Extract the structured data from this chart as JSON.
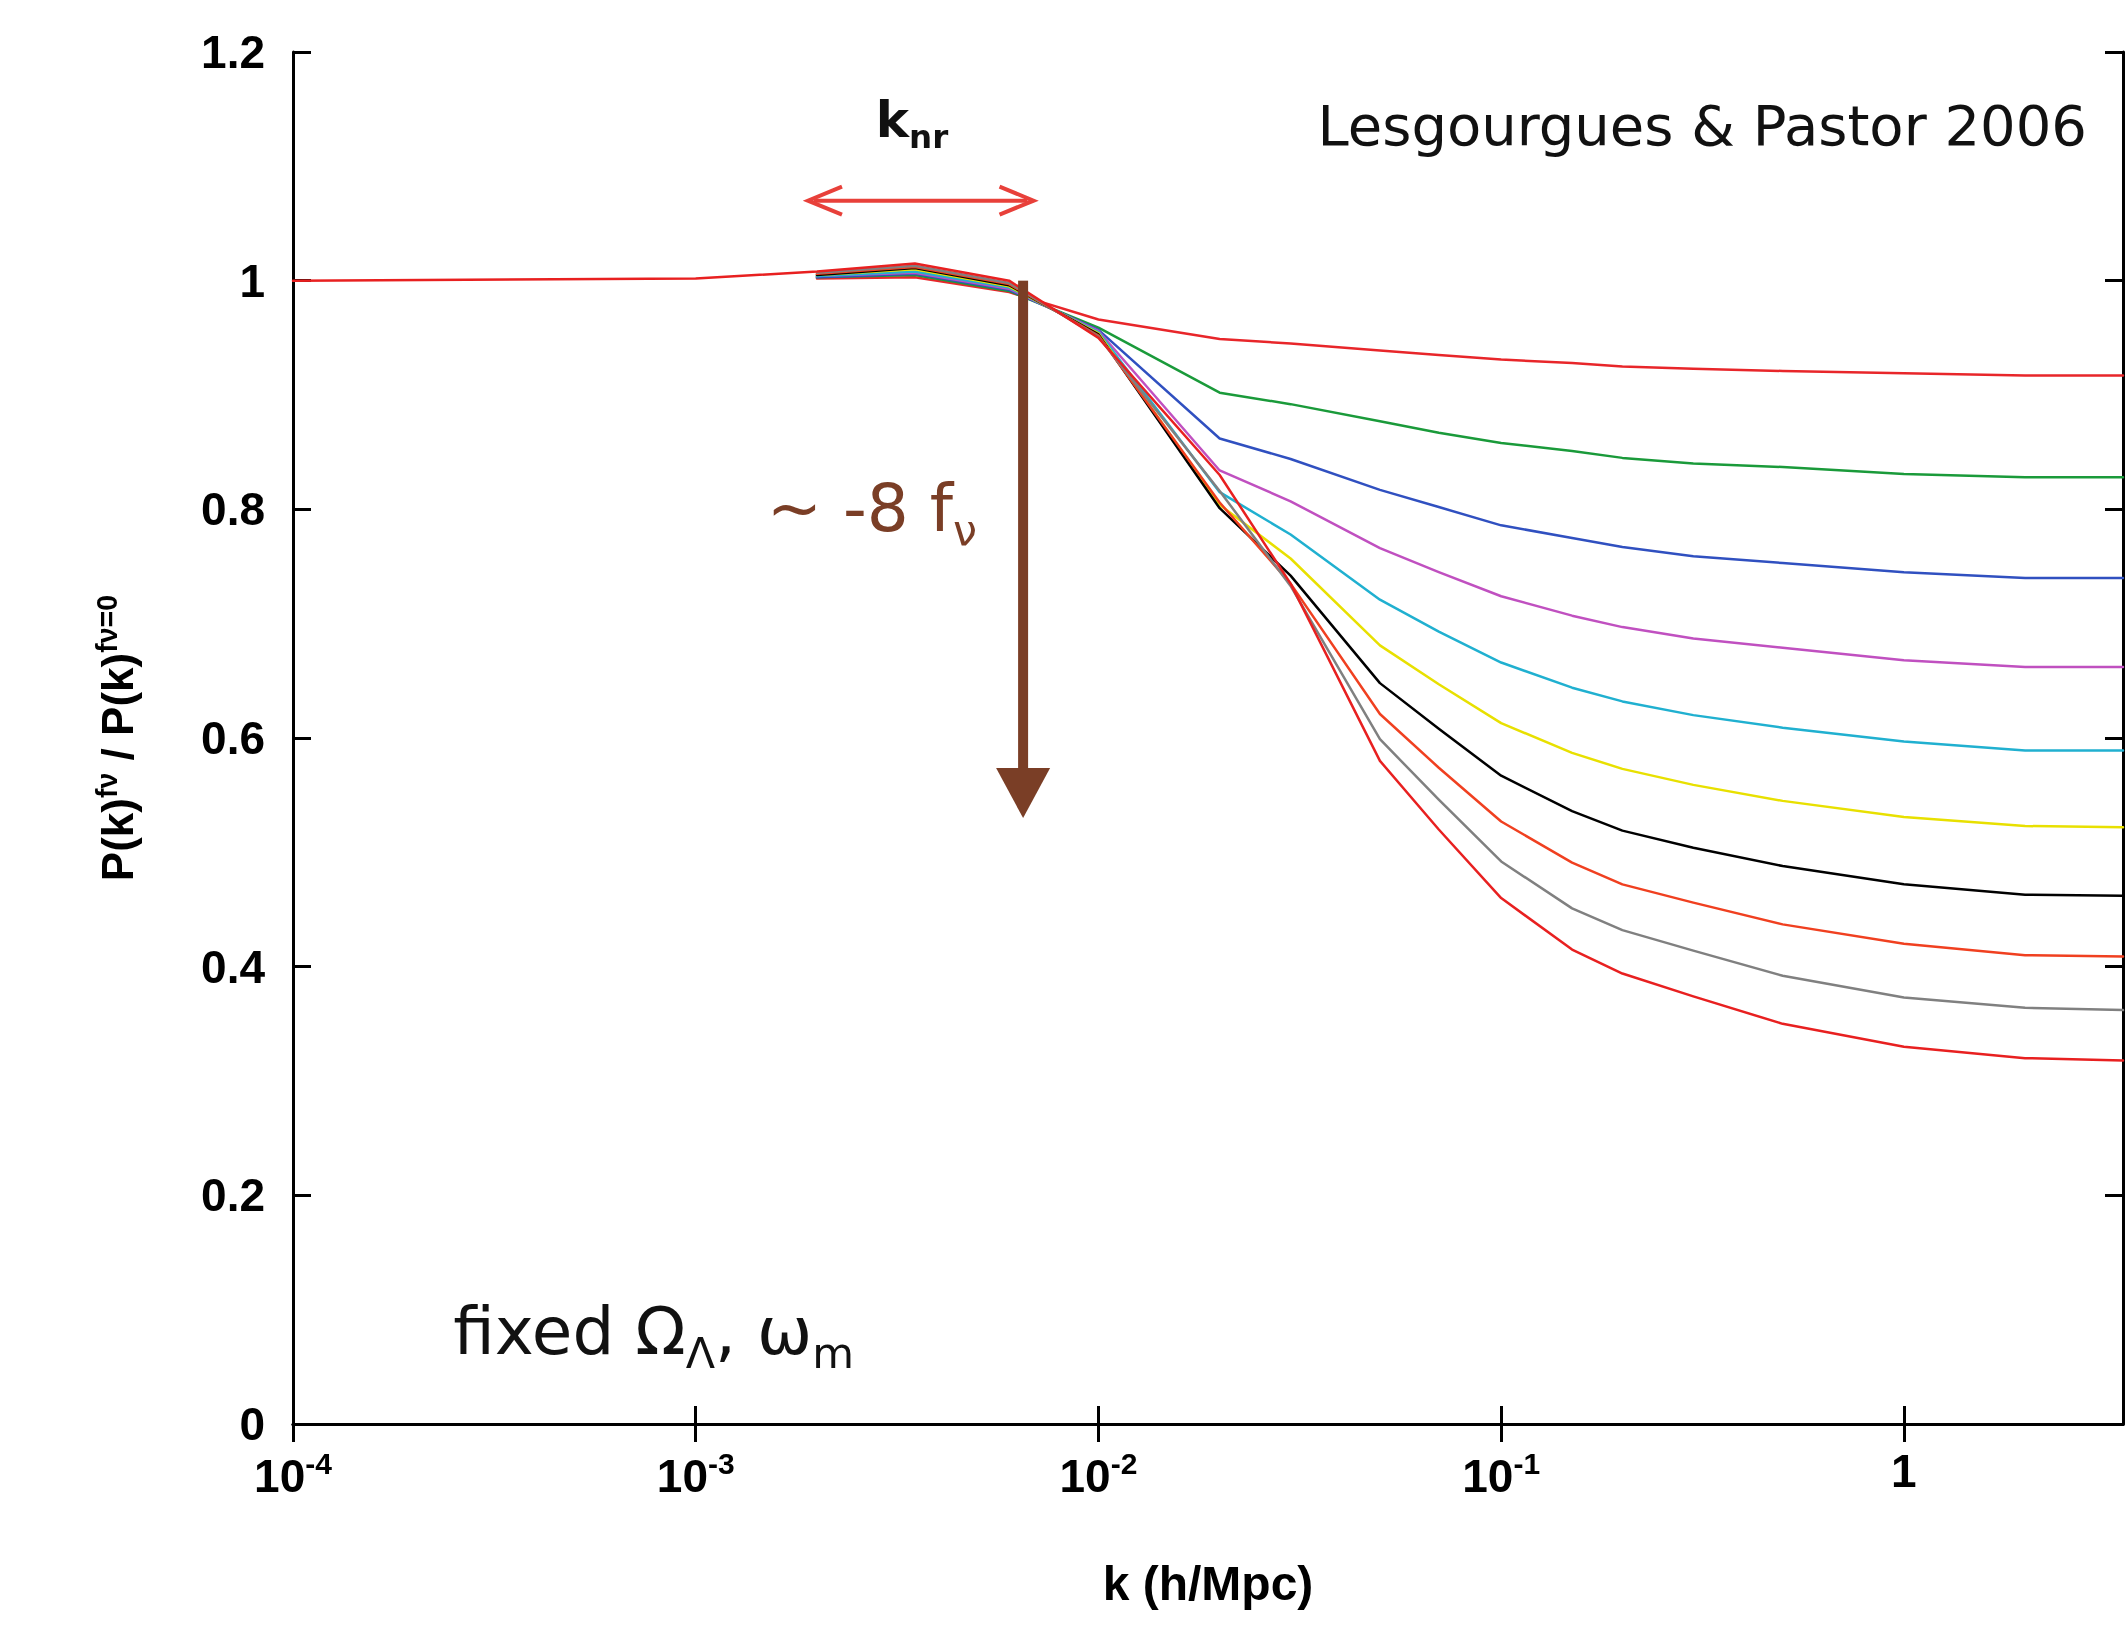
{
  "chart_data": {
    "type": "line",
    "xlabel": "k (h/Mpc)",
    "ylabel": "P(k)$^{fν}$ / P(k)$^{fν=0}$",
    "x": [
      0.0001,
      0.001,
      0.002,
      0.0035,
      0.006,
      0.01,
      0.02,
      0.03,
      0.05,
      0.07,
      0.1,
      0.15,
      0.2,
      0.3,
      0.5,
      1,
      2,
      3.5
    ],
    "series": [
      {
        "color": "#e8262a",
        "values": [
          null,
          null,
          1.002,
          1.003,
          0.99,
          0.966,
          0.949,
          0.945,
          0.939,
          0.935,
          0.931,
          0.928,
          0.925,
          0.923,
          0.921,
          0.919,
          0.917,
          0.917
        ]
      },
      {
        "color": "#1a9a3a",
        "values": [
          null,
          null,
          1.003,
          1.005,
          0.991,
          0.959,
          0.902,
          0.892,
          0.877,
          0.867,
          0.858,
          0.851,
          0.845,
          0.84,
          0.837,
          0.831,
          0.828,
          0.828
        ]
      },
      {
        "color": "#3050c0",
        "values": [
          null,
          null,
          1.003,
          1.006,
          0.992,
          0.957,
          0.862,
          0.844,
          0.817,
          0.802,
          0.786,
          0.775,
          0.767,
          0.759,
          0.753,
          0.745,
          0.74,
          0.74
        ]
      },
      {
        "color": "#c050c0",
        "values": [
          null,
          null,
          1.004,
          1.007,
          0.993,
          0.956,
          0.834,
          0.807,
          0.766,
          0.745,
          0.724,
          0.707,
          0.697,
          0.687,
          0.679,
          0.668,
          0.662,
          0.662
        ]
      },
      {
        "color": "#20b0d0",
        "values": [
          null,
          null,
          1.004,
          1.008,
          0.994,
          0.955,
          0.815,
          0.778,
          0.721,
          0.693,
          0.666,
          0.644,
          0.632,
          0.62,
          0.609,
          0.597,
          0.589,
          0.589
        ]
      },
      {
        "color": "#e8e000",
        "values": [
          null,
          null,
          1.005,
          1.01,
          0.995,
          0.954,
          0.804,
          0.757,
          0.681,
          0.647,
          0.613,
          0.587,
          0.573,
          0.559,
          0.545,
          0.531,
          0.523,
          0.522
        ]
      },
      {
        "color": "#000000",
        "values": [
          null,
          null,
          1.005,
          1.011,
          0.996,
          0.953,
          0.801,
          0.742,
          0.648,
          0.608,
          0.567,
          0.536,
          0.519,
          0.504,
          0.488,
          0.472,
          0.463,
          0.462
        ]
      },
      {
        "color": "#f04020",
        "values": [
          null,
          null,
          1.006,
          1.012,
          0.997,
          0.952,
          0.806,
          0.735,
          0.621,
          0.574,
          0.527,
          0.491,
          0.472,
          0.456,
          0.437,
          0.42,
          0.41,
          0.409
        ]
      },
      {
        "color": "#808080",
        "values": [
          null,
          null,
          1.007,
          1.013,
          0.998,
          0.951,
          0.816,
          0.733,
          0.599,
          0.546,
          0.492,
          0.451,
          0.432,
          0.414,
          0.392,
          0.373,
          0.364,
          0.362
        ]
      },
      {
        "color": "#e82020",
        "values": [
          1,
          1.002,
          1.008,
          1.015,
          1.0,
          0.95,
          0.83,
          0.735,
          0.58,
          0.52,
          0.46,
          0.415,
          0.394,
          0.374,
          0.35,
          0.33,
          0.32,
          0.318
        ]
      }
    ],
    "log": "x",
    "xlim": [
      0.0001,
      3.5
    ],
    "xticks": [
      {
        "value": 0.0001,
        "label": "10$^{-4}$"
      },
      {
        "value": 0.001,
        "label": "10$^{-3}$"
      },
      {
        "value": 0.01,
        "label": "10$^{-2}$"
      },
      {
        "value": 0.1,
        "label": "10$^{-1}$"
      },
      1
    ],
    "ylim": [
      0,
      1.2
    ],
    "yticks": [
      0,
      0.2,
      0.4,
      0.6,
      0.8,
      1,
      1.2
    ],
    "grid": false,
    "marker": "none",
    "line_style": "solid",
    "annotations": [
      "Lesgourgues & Pastor 2006",
      "k$_{nr}$",
      "~ -8 f$_{ν}$",
      "fixed Ω$_{Λ}$, ω$_{m}$"
    ]
  }
}
